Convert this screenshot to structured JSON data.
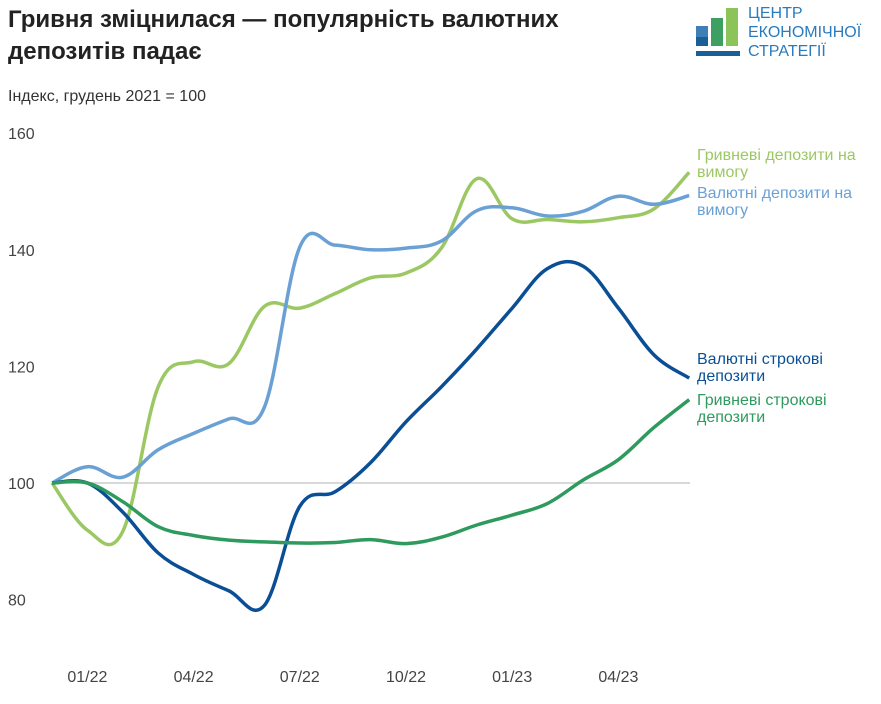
{
  "title": "Гривня зміцнилася — популярність валютних депозитів падає",
  "subtitle": "Індекс, грудень 2021 = 100",
  "logo": {
    "lines": [
      "ЦЕНТР",
      "ЕКОНОМІЧНОЇ",
      "СТРАТЕГІЇ"
    ]
  },
  "chart_data": {
    "type": "line",
    "title": "Гривня зміцнилася — популярність валютних депозитів падає",
    "ylabel": "Індекс, грудень 2021 = 100",
    "ylim": [
      70,
      160
    ],
    "yticks": [
      80,
      100,
      120,
      140,
      160
    ],
    "xticks": [
      {
        "index": 1,
        "label": "01/22"
      },
      {
        "index": 4,
        "label": "04/22"
      },
      {
        "index": 7,
        "label": "07/22"
      },
      {
        "index": 10,
        "label": "10/22"
      },
      {
        "index": 13,
        "label": "01/23"
      },
      {
        "index": 16,
        "label": "04/23"
      }
    ],
    "x": [
      "12/21",
      "01/22",
      "02/22",
      "03/22",
      "04/22",
      "05/22",
      "06/22",
      "07/22",
      "08/22",
      "09/22",
      "10/22",
      "11/22",
      "12/22",
      "01/23",
      "02/23",
      "03/23",
      "04/23",
      "05/23",
      "06/23"
    ],
    "reference_line": 100,
    "series": [
      {
        "name": "Гривневі депозити на вимогу",
        "label_lines": [
          "Гривневі депозити на",
          "вимогу"
        ],
        "color": "#9bc863",
        "values": [
          100,
          91.9,
          91.7,
          116.5,
          120.8,
          120.5,
          130.3,
          130,
          132.5,
          135.2,
          136,
          140.3,
          152.2,
          145.3,
          145.2,
          144.8,
          145.5,
          147,
          153.3
        ]
      },
      {
        "name": "Валютні депозити на вимогу",
        "label_lines": [
          "Валютні депозити на",
          "вимогу"
        ],
        "color": "#6aa0d4",
        "values": [
          100,
          102.8,
          101,
          105.7,
          108.5,
          111,
          113,
          140.5,
          140.8,
          140,
          140.3,
          141.5,
          146.7,
          147.2,
          145.8,
          146.6,
          149.2,
          147.8,
          149.3
        ]
      },
      {
        "name": "Валютні строкові депозити",
        "label_lines": [
          "Валютні строкові",
          "депозити"
        ],
        "color": "#0a4f96",
        "values": [
          100,
          100,
          95,
          88,
          84.3,
          81.5,
          79,
          96,
          98.5,
          103.5,
          110.5,
          116.5,
          123,
          130,
          136.8,
          137.2,
          130,
          122,
          118
        ]
      },
      {
        "name": "Гривневі строкові депозити",
        "label_lines": [
          "Гривневі строкові",
          "депозити"
        ],
        "color": "#2e9a5e",
        "values": [
          100,
          100,
          96.8,
          92.5,
          91,
          90.2,
          89.9,
          89.7,
          89.8,
          90.3,
          89.6,
          90.7,
          92.8,
          94.5,
          96.5,
          100.5,
          104,
          109.5,
          114.3
        ]
      }
    ]
  }
}
